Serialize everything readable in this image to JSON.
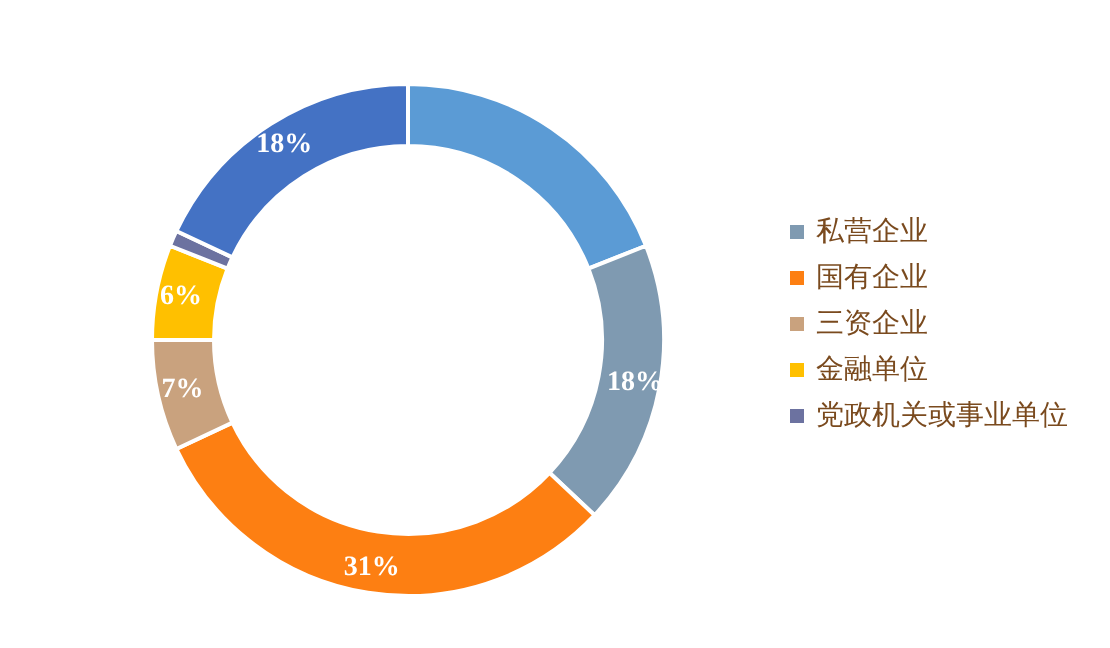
{
  "chart_data": {
    "type": "donut",
    "categories": [
      null,
      "私营企业",
      "国有企业",
      "三资企业",
      "金融单位",
      "党政机关或事业单位",
      null
    ],
    "values": [
      19,
      18,
      31,
      7,
      6,
      1,
      18
    ],
    "colors": [
      "#5b9bd5",
      "#7f9ab1",
      "#fd7f12",
      "#c9a27e",
      "#ffc000",
      "#6c72a0",
      "#4472c4"
    ],
    "value_labels": [
      null,
      "18%",
      "31%",
      "7%",
      "6%",
      null,
      "18%"
    ],
    "legend": "right"
  }
}
